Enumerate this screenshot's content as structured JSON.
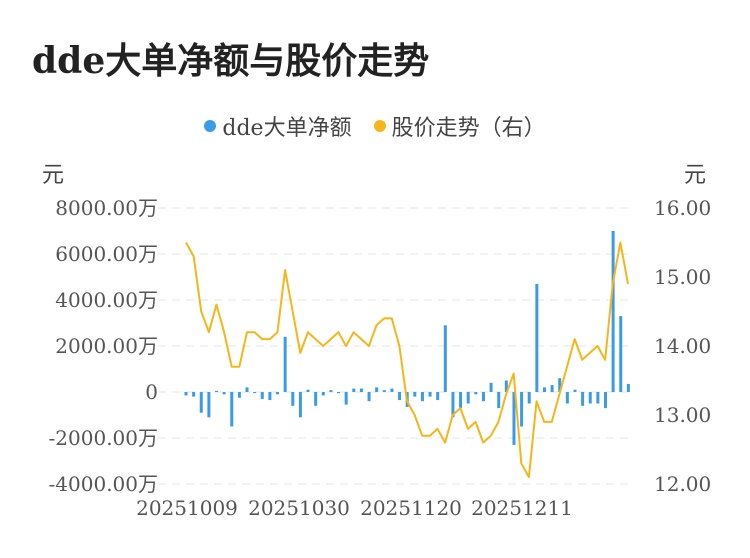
{
  "title": "dde大单净额与股价走势",
  "legend": [
    {
      "label": "dde大单净额",
      "color": "#3a9be8"
    },
    {
      "label": "股价走势（右）",
      "color": "#f6b519"
    }
  ],
  "units": {
    "left": "元",
    "right": "元"
  },
  "chart_data": {
    "type": "bar+line",
    "x_ticks": [
      "20251009",
      "20251030",
      "20251120",
      "20251211"
    ],
    "y_left": {
      "ticks": [
        "8000.00万",
        "6000.00万",
        "4000.00万",
        "2000.00万",
        "0",
        "-2000.00万",
        "-4000.00万"
      ],
      "range": [
        -4000,
        8000
      ],
      "unit": "万"
    },
    "y_right": {
      "ticks": [
        "16.00",
        "15.00",
        "14.00",
        "13.00",
        "12.00"
      ],
      "range": [
        12,
        16
      ]
    },
    "grid": true,
    "series": [
      {
        "name": "dde大单净额",
        "type": "bar",
        "color": "#3a9be8",
        "values": [
          -150,
          -200,
          -900,
          -1100,
          50,
          -100,
          -1500,
          -250,
          200,
          -50,
          -300,
          -350,
          -100,
          2400,
          -600,
          -1100,
          100,
          -600,
          -150,
          80,
          -50,
          -550,
          150,
          150,
          -400,
          200,
          80,
          150,
          -350,
          -650,
          -200,
          -400,
          -200,
          -350,
          2900,
          -1100,
          -700,
          -500,
          -100,
          -400,
          400,
          -700,
          500,
          -2300,
          -1500,
          -500,
          4700,
          200,
          300,
          600,
          -500,
          100,
          -600,
          -500,
          -500,
          -700,
          7000,
          3300,
          350
        ],
        "unit": "万"
      },
      {
        "name": "股价走势（右）",
        "type": "line",
        "color": "#f6b519",
        "axis": "right",
        "values": [
          15.5,
          15.3,
          14.5,
          14.2,
          14.6,
          14.2,
          13.7,
          13.7,
          14.2,
          14.2,
          14.1,
          14.1,
          14.2,
          15.1,
          14.5,
          13.9,
          14.2,
          14.1,
          14.0,
          14.1,
          14.2,
          14.0,
          14.2,
          14.1,
          14.0,
          14.3,
          14.4,
          14.4,
          14.0,
          13.2,
          13.0,
          12.7,
          12.7,
          12.8,
          12.6,
          13.0,
          13.1,
          12.8,
          12.9,
          12.6,
          12.7,
          12.9,
          13.3,
          13.6,
          12.3,
          12.1,
          13.2,
          12.9,
          12.9,
          13.3,
          13.7,
          14.1,
          13.8,
          13.9,
          14.0,
          13.8,
          14.9,
          15.5,
          14.9
        ]
      }
    ]
  }
}
